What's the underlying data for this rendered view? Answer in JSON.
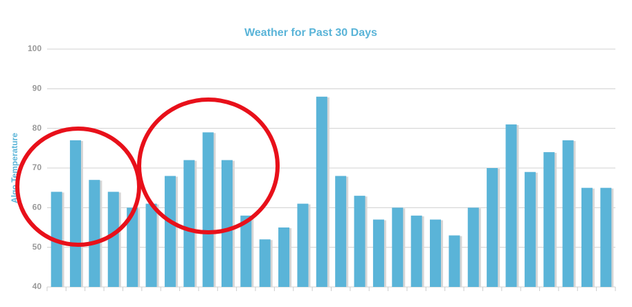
{
  "chart_data": {
    "type": "bar",
    "title": "Weather for Past 30 Days",
    "y_label": "Algo Temperature",
    "values": [
      64,
      77,
      67,
      64,
      60,
      61,
      68,
      72,
      79,
      72,
      58,
      52,
      55,
      61,
      88,
      68,
      63,
      57,
      60,
      58,
      57,
      53,
      60,
      70,
      81,
      69,
      74,
      77,
      65,
      65
    ],
    "color": "#5ab4d8",
    "ylim": [
      40,
      100
    ],
    "yticks": [
      40,
      50,
      60,
      70,
      80,
      90,
      100
    ],
    "grid": true
  }
}
